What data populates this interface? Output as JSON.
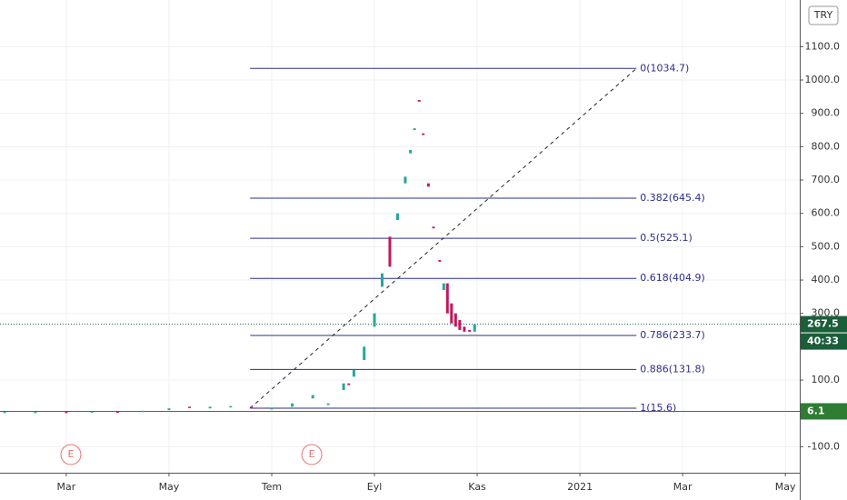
{
  "chart_data": {
    "type": "candlestick",
    "currency": "TRY",
    "xlim": [
      -1.29,
      14.28
    ],
    "xticks": [
      {
        "value": 0,
        "label": "Mar"
      },
      {
        "value": 2,
        "label": "May"
      },
      {
        "value": 4,
        "label": "Tem"
      },
      {
        "value": 6,
        "label": "Eyl"
      },
      {
        "value": 8,
        "label": "Kas"
      },
      {
        "value": 10,
        "label": "2021"
      },
      {
        "value": 12,
        "label": "Mar"
      },
      {
        "value": 14,
        "label": "May"
      }
    ],
    "ylim": [
      -178,
      1240
    ],
    "yticks": [
      {
        "value": -100,
        "label": "-100.0"
      },
      {
        "value": 100,
        "label": "100.0"
      },
      {
        "value": 300,
        "label": "300.0"
      },
      {
        "value": 400,
        "label": "400.0"
      },
      {
        "value": 500,
        "label": "500.0"
      },
      {
        "value": 600,
        "label": "600.0"
      },
      {
        "value": 700,
        "label": "700.0"
      },
      {
        "value": 800,
        "label": "800.0"
      },
      {
        "value": 900,
        "label": "900.0"
      },
      {
        "value": 1000,
        "label": "1000.0"
      },
      {
        "value": 1100,
        "label": "1100.0"
      }
    ],
    "grid": true,
    "series": [
      {
        "up_color": "#26a69a",
        "down_color": "#c2185b",
        "x": [
          -1.2,
          -0.6,
          0,
          0.5,
          1,
          1.5,
          2,
          2.4,
          2.8,
          3.2,
          3.6,
          4,
          4.4,
          4.8,
          5.1,
          5.4,
          5.5,
          5.6,
          5.8,
          6.0,
          6.15,
          6.3,
          6.45,
          6.6,
          6.7,
          6.78,
          6.87,
          6.95,
          7.05,
          7.15,
          7.27,
          7.35,
          7.42,
          7.5,
          7.58,
          7.66,
          7.75,
          7.85,
          7.95
        ],
        "open": [
          5,
          4,
          5,
          4,
          6,
          5,
          10,
          20,
          15,
          18,
          20,
          15,
          20,
          45,
          25,
          70,
          90,
          110,
          160,
          260,
          380,
          530,
          580,
          690,
          780,
          850,
          940,
          840,
          690,
          560,
          460,
          370,
          390,
          330,
          300,
          280,
          260,
          250,
          245
        ],
        "close": [
          5,
          5,
          4,
          6,
          5,
          8,
          15,
          18,
          20,
          22,
          18,
          16,
          30,
          55,
          30,
          90,
          85,
          130,
          200,
          300,
          420,
          440,
          600,
          710,
          790,
          855,
          935,
          835,
          680,
          555,
          455,
          390,
          300,
          270,
          260,
          250,
          245,
          245,
          267.5
        ]
      }
    ],
    "fib_x": [
      3.58,
      11.1
    ],
    "fib_color": "#2e2e8a",
    "fib_levels": [
      {
        "value": 1034.7,
        "label": "0(1034.7)"
      },
      {
        "value": 645.4,
        "label": "0.382(645.4)"
      },
      {
        "value": 525.1,
        "label": "0.5(525.1)"
      },
      {
        "value": 404.9,
        "label": "0.618(404.9)"
      },
      {
        "value": 233.7,
        "label": "0.786(233.7)"
      },
      {
        "value": 131.8,
        "label": "0.886(131.8)"
      },
      {
        "value": 15.6,
        "label": "1(15.6)"
      }
    ],
    "price_labels": [
      {
        "value": 267.5,
        "color": "#1b5e3a",
        "line": "dotted"
      },
      {
        "value": 6.1,
        "color": "#2e7d32",
        "line": "solid"
      }
    ],
    "countdown": "40:33",
    "events": [
      {
        "x": 0.09,
        "label": "E"
      },
      {
        "x": 4.78,
        "label": "E"
      }
    ]
  }
}
